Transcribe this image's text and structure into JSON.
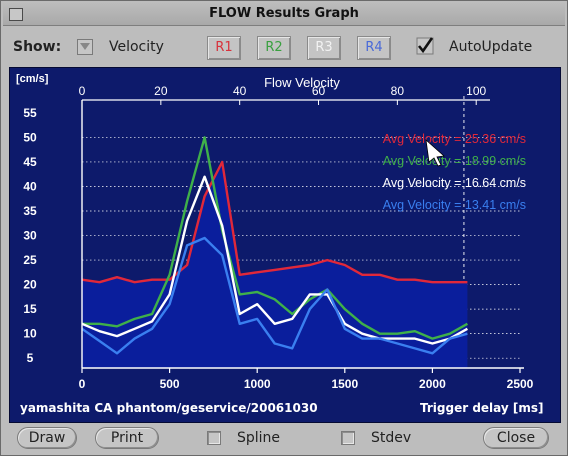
{
  "window": {
    "title": "FLOW Results Graph"
  },
  "toolbar": {
    "show_label": "Show:",
    "mode_value": "Velocity",
    "region_buttons": [
      {
        "label": "R1",
        "color": "#d8323c"
      },
      {
        "label": "R2",
        "color": "#3aa040"
      },
      {
        "label": "R3",
        "color": "#f2f2f2"
      },
      {
        "label": "R4",
        "color": "#4a6ad8"
      }
    ],
    "autoupdate_label": "AutoUpdate",
    "autoupdate_checked": true
  },
  "plot": {
    "title": "Flow Velocity",
    "y_unit": "[cm/s]",
    "top_ticks": [
      "0",
      "20",
      "40",
      "60",
      "80",
      "100"
    ],
    "y_ticks": [
      "55",
      "50",
      "45",
      "40",
      "35",
      "30",
      "25",
      "20",
      "15",
      "10",
      "5"
    ],
    "x_ticks": [
      "0",
      "500",
      "1000",
      "1500",
      "2000",
      "2500"
    ],
    "x_label": "Trigger delay [ms]",
    "footer": "yamashita CA phantom/geservice/20061030",
    "legend": [
      {
        "text": "Avg Velocity = 25.36 cm/s",
        "color": "#e0283a"
      },
      {
        "text": "Avg Velocity = 18.99 cm/s",
        "color": "#3fb04a"
      },
      {
        "text": "Avg Velocity = 16.64 cm/s",
        "color": "#ffffff"
      },
      {
        "text": "Avg Velocity = 13.41 cm/s",
        "color": "#3a7ff0"
      }
    ]
  },
  "chart_data": {
    "type": "area",
    "title": "Flow Velocity",
    "xlabel": "Trigger delay [ms]",
    "ylabel": "[cm/s]",
    "xlim": [
      0,
      2500
    ],
    "ylim": [
      3,
      56
    ],
    "marker_line_x": 2180,
    "x": [
      0,
      100,
      200,
      300,
      400,
      500,
      600,
      700,
      800,
      900,
      1000,
      1100,
      1200,
      1300,
      1400,
      1500,
      1600,
      1700,
      1800,
      1900,
      2000,
      2100,
      2200
    ],
    "series": [
      {
        "name": "Avg Velocity = 25.36 cm/s",
        "color": "#e0283a",
        "fill": true,
        "values": [
          21,
          20.5,
          21.5,
          20.5,
          21,
          21,
          24,
          38,
          45,
          22,
          22.5,
          23,
          23.5,
          24,
          25,
          24,
          22,
          22,
          21,
          21,
          20.5,
          20.5,
          20.5
        ]
      },
      {
        "name": "Avg Velocity = 18.99 cm/s",
        "color": "#3fb04a",
        "fill": false,
        "values": [
          12,
          12,
          11.5,
          13,
          14,
          22,
          37,
          50,
          31,
          18,
          18.5,
          17,
          14,
          17,
          19,
          15,
          12,
          10,
          10,
          10.5,
          9,
          10,
          12
        ]
      },
      {
        "name": "Avg Velocity = 16.64 cm/s",
        "color": "#ffffff",
        "fill": false,
        "values": [
          12,
          10.5,
          9.5,
          11,
          12.5,
          18,
          33,
          42,
          32,
          14,
          16,
          12,
          13,
          18,
          18,
          12,
          10,
          9,
          9,
          9,
          8,
          9,
          11
        ]
      },
      {
        "name": "Avg Velocity = 13.41 cm/s",
        "color": "#3a7ff0",
        "fill": false,
        "values": [
          11,
          8.5,
          6,
          9,
          11,
          16,
          28,
          29.5,
          26,
          12,
          13,
          8,
          7,
          15,
          19,
          11,
          9,
          9,
          8,
          7,
          6,
          9,
          10
        ]
      }
    ]
  },
  "bottom": {
    "draw_label": "Draw",
    "print_label": "Print",
    "spline_label": "Spline",
    "stdev_label": "Stdev",
    "close_label": "Close"
  }
}
